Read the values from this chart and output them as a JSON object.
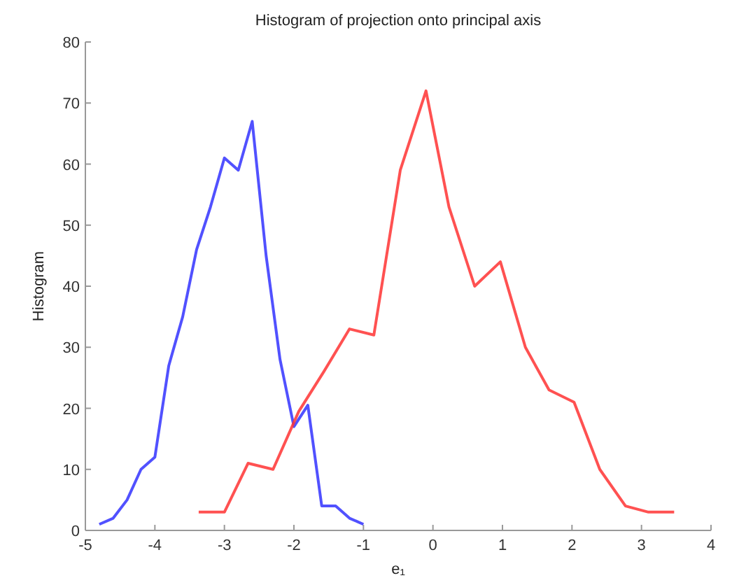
{
  "chart_data": {
    "type": "line",
    "title": "Histogram of projection onto principal axis",
    "xlabel": "e₁",
    "ylabel": "Histogram",
    "xlim": [
      -5,
      4
    ],
    "xticks": [
      -5,
      -4,
      -3,
      -2,
      -1,
      0,
      1,
      2,
      3,
      4
    ],
    "ylim": [
      0,
      80
    ],
    "yticks": [
      0,
      10,
      20,
      30,
      40,
      50,
      60,
      70,
      80
    ],
    "series": [
      {
        "color": "#3333ff",
        "x": [
          -4.8,
          -4.6,
          -4.4,
          -4.2,
          -4.0,
          -3.8,
          -3.6,
          -3.4,
          -3.2,
          -3.0,
          -2.8,
          -2.6,
          -2.4,
          -2.2,
          -2.0,
          -1.8,
          -1.6,
          -1.4,
          -1.2,
          -1.0
        ],
        "values": [
          1,
          2,
          5,
          10,
          12,
          27,
          35,
          46,
          53,
          61,
          59,
          67,
          45,
          28,
          17,
          20.5,
          4,
          4,
          2,
          1
        ]
      },
      {
        "color": "#ff3333",
        "x": [
          -3.37,
          -3.0,
          -2.66,
          -2.3,
          -1.93,
          -1.57,
          -1.2,
          -0.85,
          -0.47,
          -0.1,
          0.23,
          0.6,
          0.97,
          1.33,
          1.67,
          2.03,
          2.4,
          2.77,
          3.1,
          3.47
        ],
        "values": [
          3,
          3,
          11,
          10,
          19.5,
          26,
          33,
          32,
          59,
          72,
          53,
          40,
          44,
          30,
          23,
          21,
          10,
          4,
          3,
          3
        ]
      }
    ]
  }
}
